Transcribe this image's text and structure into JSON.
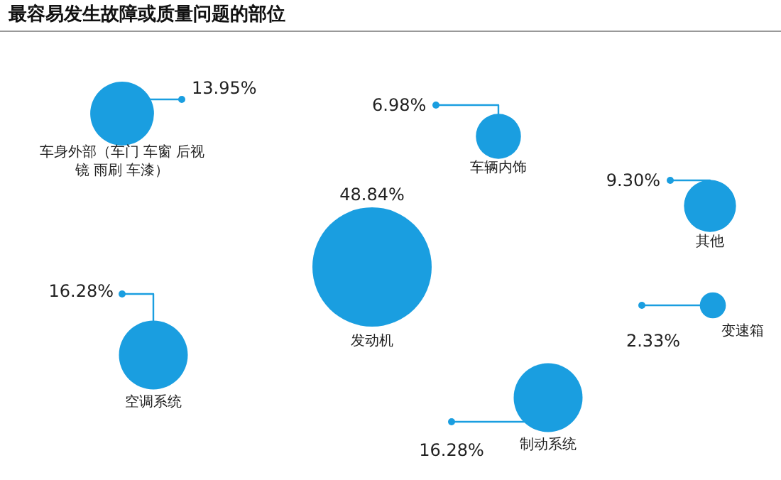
{
  "chart_data": {
    "type": "other",
    "title": "最容易发生故障或质量问题的部位",
    "categories": [
      "车身外部（车门 车窗 后视镜 雨刷 车漆）",
      "车辆内饰",
      "其他",
      "发动机",
      "空调系统",
      "变速箱",
      "制动系统"
    ],
    "values": [
      13.95,
      6.98,
      9.3,
      48.84,
      16.28,
      2.33,
      16.28
    ],
    "value_labels": [
      "13.95%",
      "6.98%",
      "9.30%",
      "48.84%",
      "16.28%",
      "2.33%",
      "16.28%"
    ],
    "color": "#1a9ee0"
  }
}
